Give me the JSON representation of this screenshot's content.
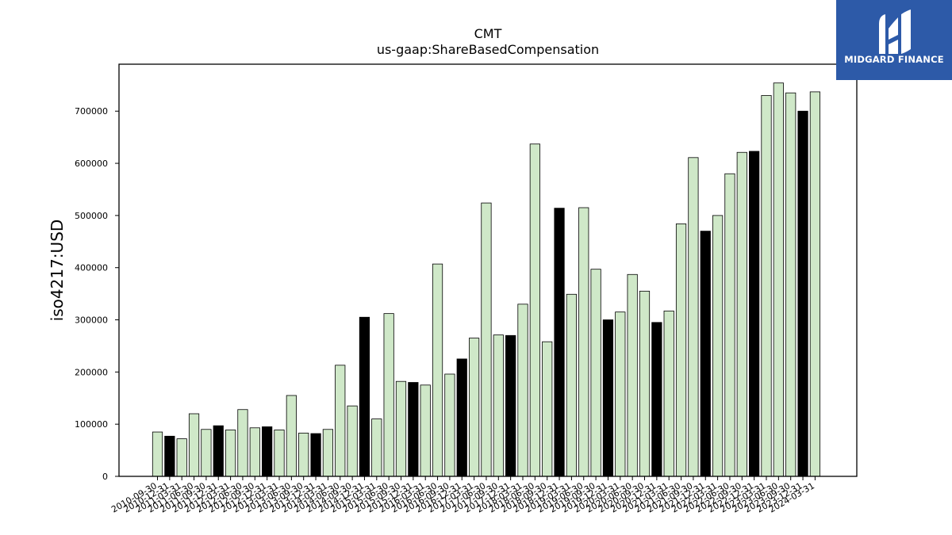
{
  "logo": {
    "text": "MIDGARD FINANCE",
    "icon": "midgard-logo-icon",
    "background": "#2d5aa8"
  },
  "chart_data": {
    "type": "bar",
    "title": "CMT",
    "subtitle": "us-gaap:ShareBasedCompensation",
    "xlabel": "",
    "ylabel": "iso4217:USD",
    "ylim": [
      0,
      790000
    ],
    "yticks": [
      0,
      100000,
      200000,
      300000,
      400000,
      500000,
      600000,
      700000
    ],
    "grid": false,
    "colors": {
      "default": "#cfe8c8",
      "highlight": "#000000",
      "edge": "#000000"
    },
    "categories": [
      "2010-09-30",
      "2010-12-31",
      "2011-03-31",
      "2011-06-30",
      "2011-09-30",
      "2011-12-31",
      "2012-03-31",
      "2012-06-30",
      "2012-09-30",
      "2012-12-31",
      "2013-03-31",
      "2013-06-30",
      "2013-09-30",
      "2013-12-31",
      "2014-03-31",
      "2014-06-30",
      "2014-09-30",
      "2014-12-31",
      "2015-03-31",
      "2015-06-30",
      "2015-09-30",
      "2015-12-31",
      "2016-03-31",
      "2016-06-30",
      "2016-09-30",
      "2016-12-31",
      "2017-03-31",
      "2017-06-30",
      "2017-09-30",
      "2017-12-31",
      "2018-03-31",
      "2018-06-30",
      "2018-09-30",
      "2018-12-31",
      "2019-03-31",
      "2019-06-30",
      "2019-09-30",
      "2019-12-31",
      "2020-03-31",
      "2020-06-30",
      "2020-09-30",
      "2020-12-31",
      "2021-03-31",
      "2021-06-30",
      "2021-09-30",
      "2021-12-31",
      "2022-03-31",
      "2022-06-30",
      "2022-09-30",
      "2022-12-31",
      "2023-03-31",
      "2023-06-30",
      "2023-09-30",
      "2023-12-31",
      "2024-03-31"
    ],
    "values": [
      85000,
      77000,
      72000,
      120000,
      90000,
      97000,
      89000,
      128000,
      93000,
      95000,
      89000,
      155000,
      83000,
      82000,
      90000,
      213000,
      135000,
      305000,
      110000,
      312000,
      182000,
      180000,
      175000,
      407000,
      196000,
      225000,
      265000,
      524000,
      271000,
      270000,
      330000,
      637000,
      258000,
      514000,
      349000,
      515000,
      397000,
      300000,
      315000,
      387000,
      355000,
      295000,
      317000,
      484000,
      611000,
      470000,
      500000,
      580000,
      621000,
      623000,
      730000,
      754000,
      735000,
      700000,
      737000
    ],
    "highlight": [
      false,
      true,
      false,
      false,
      false,
      true,
      false,
      false,
      false,
      true,
      false,
      false,
      false,
      true,
      false,
      false,
      false,
      true,
      false,
      false,
      false,
      true,
      false,
      false,
      false,
      true,
      false,
      false,
      false,
      true,
      false,
      false,
      false,
      true,
      false,
      false,
      false,
      true,
      false,
      false,
      false,
      true,
      false,
      false,
      false,
      true,
      false,
      false,
      false,
      true,
      false,
      false,
      false,
      true,
      false
    ]
  }
}
